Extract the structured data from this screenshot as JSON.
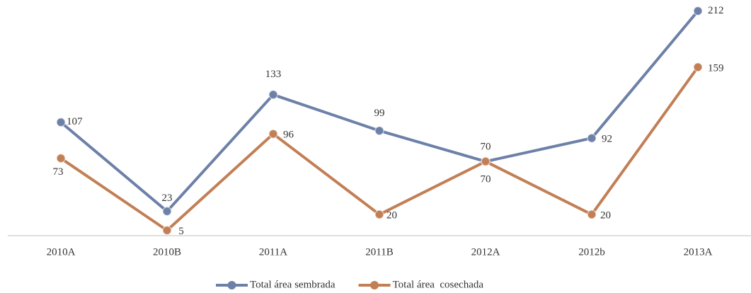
{
  "chart_data": {
    "type": "line",
    "categories": [
      "2010A",
      "2010B",
      "2011A",
      "2011B",
      "2012A",
      "2012b",
      "2013A"
    ],
    "series": [
      {
        "name": "Total área sembrada",
        "color": "#6d80a8",
        "values": [
          107,
          23,
          133,
          99,
          70,
          92,
          212
        ]
      },
      {
        "name": "Total área  cosechada",
        "color": "#c27f55",
        "values": [
          73,
          5,
          96,
          20,
          70,
          20,
          159
        ]
      }
    ],
    "ylim": [
      0,
      220
    ],
    "legend": "bottom"
  }
}
